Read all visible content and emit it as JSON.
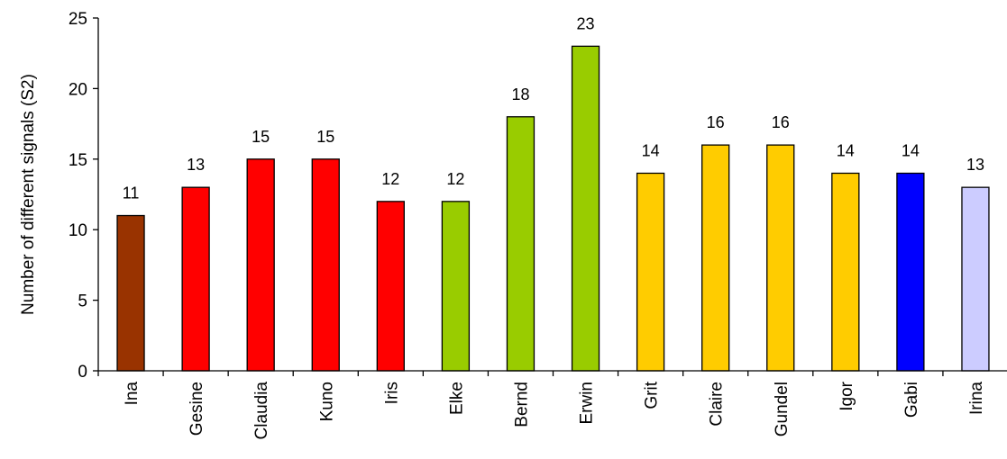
{
  "chart_data": {
    "type": "bar",
    "title": "",
    "xlabel": "",
    "ylabel": "Number of different signals (S2)",
    "ylim": [
      0,
      25
    ],
    "yticks": [
      0,
      5,
      10,
      15,
      20,
      25
    ],
    "grid": false,
    "categories": [
      "Ina",
      "Gesine",
      "Claudia",
      "Kuno",
      "Iris",
      "Elke",
      "Bernd",
      "Erwin",
      "Grit",
      "Claire",
      "Gundel",
      "Igor",
      "Gabi",
      "Irina"
    ],
    "values": [
      11,
      13,
      15,
      15,
      12,
      12,
      18,
      23,
      14,
      16,
      16,
      14,
      14,
      13
    ],
    "colors": [
      "#993300",
      "#ff0000",
      "#ff0000",
      "#ff0000",
      "#ff0000",
      "#99cc00",
      "#99cc00",
      "#99cc00",
      "#ffcc00",
      "#ffcc00",
      "#ffcc00",
      "#ffcc00",
      "#0000ff",
      "#ccccff"
    ]
  }
}
